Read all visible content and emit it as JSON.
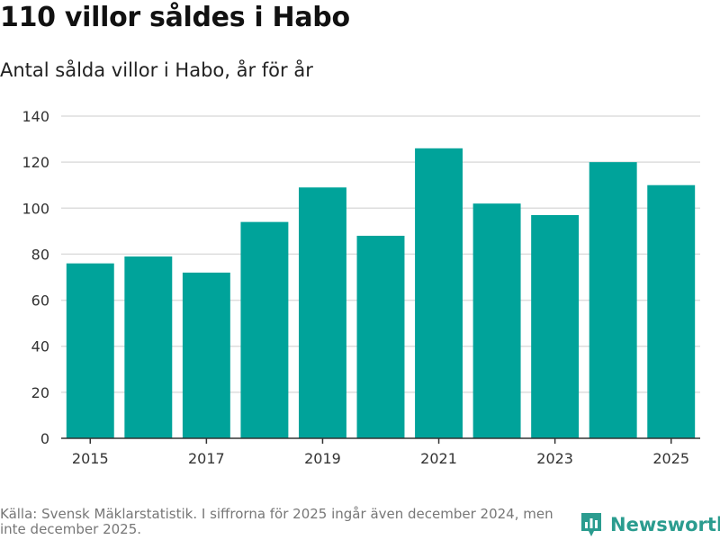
{
  "title": "110 villor såldes i Habo",
  "subtitle": "Antal sålda villor i Habo, år för år",
  "footer": {
    "source": "Källa: Svensk Mäklarstatistik. I siffrorna för 2025 ingår även december 2024, men inte december 2025."
  },
  "brand": {
    "name": "Newsworthy",
    "icon": "newsworthy-logo-icon"
  },
  "colors": {
    "bar": "#00a39a",
    "grid": "#dddddd",
    "axis": "#333333",
    "brand": "#2b9c8f"
  },
  "chart_data": {
    "type": "bar",
    "title": "110 villor såldes i Habo",
    "subtitle": "Antal sålda villor i Habo, år för år",
    "xlabel": "",
    "ylabel": "",
    "categories": [
      "2015",
      "2016",
      "2017",
      "2018",
      "2019",
      "2020",
      "2021",
      "2022",
      "2023",
      "2024",
      "2025"
    ],
    "values": [
      76,
      79,
      72,
      94,
      109,
      88,
      126,
      102,
      97,
      120,
      110
    ],
    "ylim": [
      0,
      140
    ],
    "yticks": [
      0,
      20,
      40,
      60,
      80,
      100,
      120,
      140
    ],
    "xtick_labels": [
      "2015",
      "2017",
      "2019",
      "2021",
      "2023",
      "2025"
    ],
    "grid": true,
    "legend": "none"
  }
}
